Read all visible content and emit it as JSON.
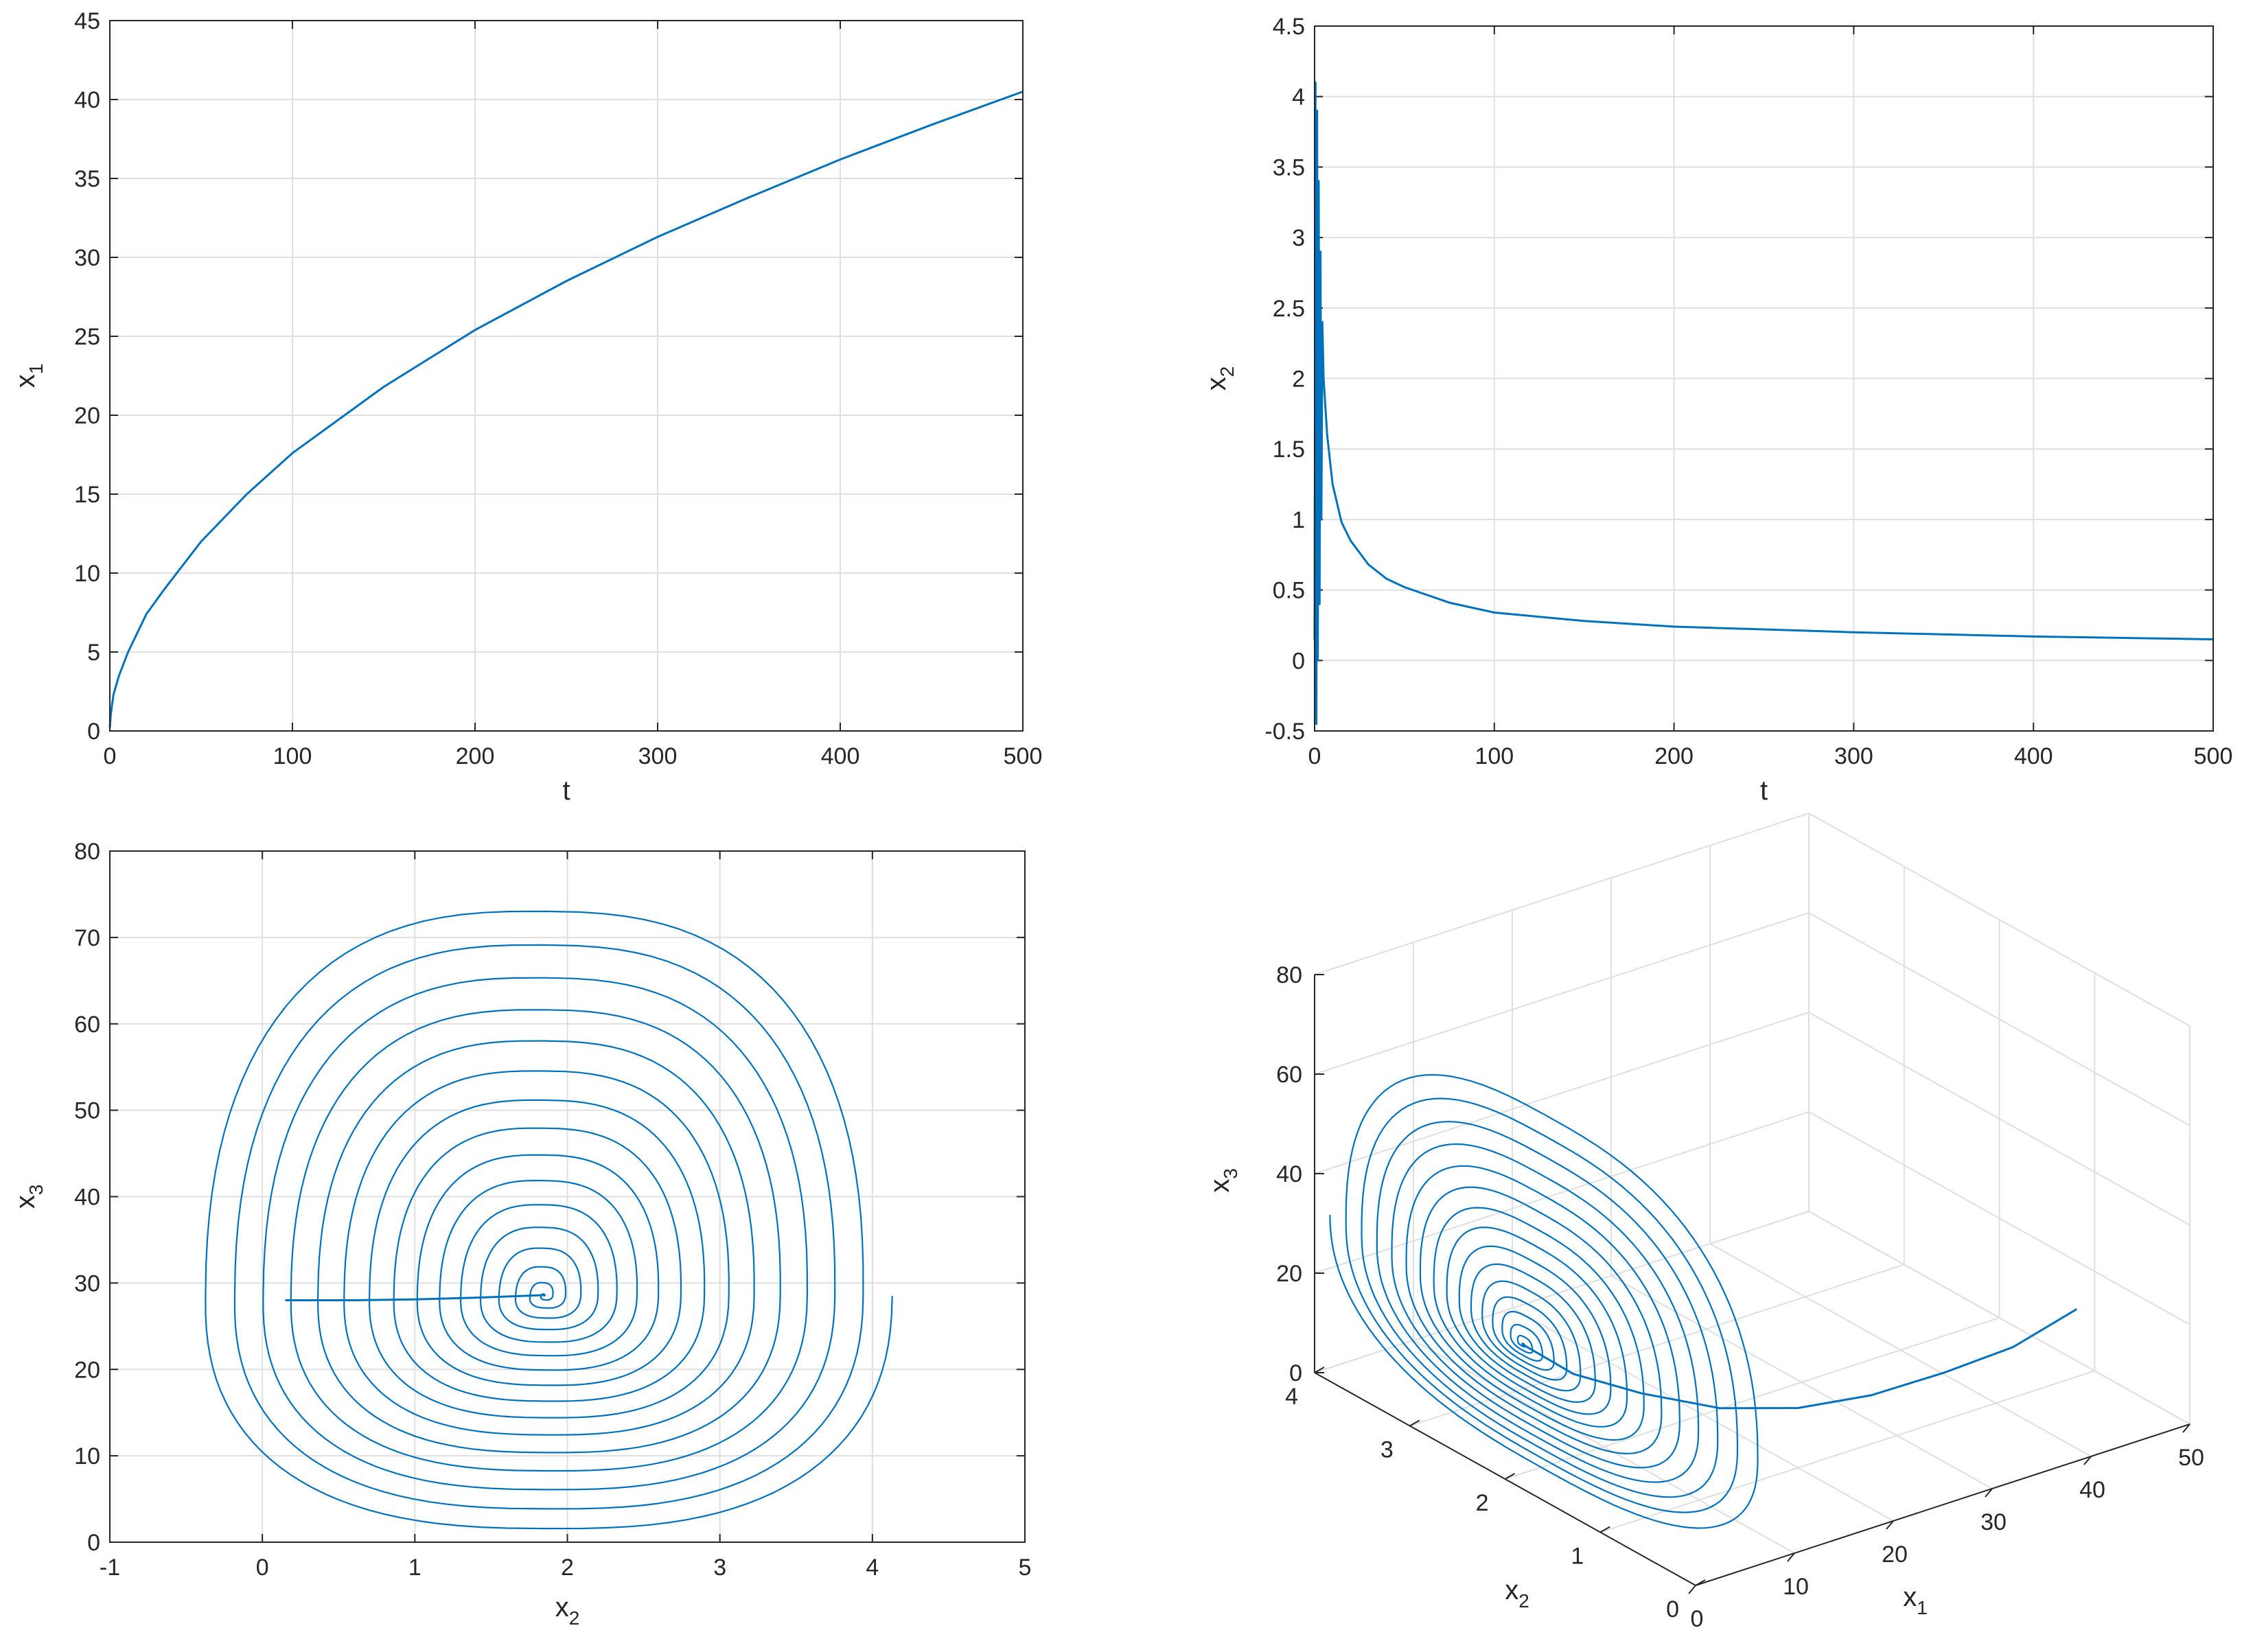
{
  "colors": {
    "line": "#0072BD",
    "grid": "#DFDFDF",
    "axis": "#262626",
    "background": "#FFFFFF"
  },
  "chart_data": [
    {
      "id": "x1_vs_t",
      "type": "line",
      "xlabel": "t",
      "ylabel": {
        "base": "x",
        "sub": "1"
      },
      "xlim": [
        0,
        500
      ],
      "ylim": [
        0,
        45
      ],
      "xticks": [
        0,
        100,
        200,
        300,
        400,
        500
      ],
      "yticks": [
        0,
        5,
        10,
        15,
        20,
        25,
        30,
        35,
        40,
        45
      ],
      "grid": true,
      "series": [
        {
          "x": [
            0,
            0.5,
            1,
            2,
            5,
            10,
            20,
            30,
            50,
            75,
            100,
            150,
            200,
            250,
            300,
            350,
            400,
            450,
            500
          ],
          "y": [
            0.2,
            1.0,
            1.5,
            2.3,
            3.5,
            5.0,
            7.4,
            9.0,
            12.0,
            15.0,
            17.6,
            21.8,
            25.4,
            28.5,
            31.3,
            33.8,
            36.2,
            38.4,
            40.5
          ]
        }
      ]
    },
    {
      "id": "x2_vs_t",
      "type": "line",
      "xlabel": "t",
      "ylabel": {
        "base": "x",
        "sub": "2"
      },
      "xlim": [
        0,
        500
      ],
      "ylim": [
        -0.5,
        4.5
      ],
      "xticks": [
        0,
        100,
        200,
        300,
        400,
        500
      ],
      "yticks": [
        -0.5,
        0,
        0.5,
        1,
        1.5,
        2,
        2.5,
        3,
        3.5,
        4,
        4.5
      ],
      "grid": true,
      "series": [
        {
          "x": [
            0,
            0.5,
            1.0,
            1.4,
            1.8,
            2.3,
            2.8,
            3.3,
            3.8,
            4.3,
            5,
            7,
            10,
            15,
            20,
            30,
            40,
            50,
            75,
            100,
            150,
            200,
            300,
            400,
            500
          ],
          "y": [
            0.15,
            4.1,
            -0.45,
            3.9,
            0.0,
            3.4,
            0.4,
            2.9,
            1.0,
            2.4,
            2.0,
            1.6,
            1.25,
            0.98,
            0.85,
            0.68,
            0.58,
            0.52,
            0.41,
            0.34,
            0.28,
            0.24,
            0.2,
            0.17,
            0.15
          ]
        }
      ]
    },
    {
      "id": "x3_vs_x2",
      "type": "line",
      "xlabel": {
        "base": "x",
        "sub": "2"
      },
      "ylabel": {
        "base": "x",
        "sub": "3"
      },
      "xlim": [
        -1,
        5
      ],
      "ylim": [
        0,
        80
      ],
      "xticks": [
        -1,
        0,
        1,
        2,
        3,
        4,
        5
      ],
      "yticks": [
        0,
        10,
        20,
        30,
        40,
        50,
        60,
        70,
        80
      ],
      "grid": true,
      "spiral": {
        "center": [
          1.85,
          28.5
        ],
        "outer_rx_left": 2.32,
        "outer_rx_right": 2.28,
        "outer_ry_up": 47.5,
        "outer_ry_down": 27.5,
        "turns": 16
      },
      "series": [
        {
          "x": [
            0.15,
            0.6,
            1.0,
            1.4,
            1.85
          ],
          "y": [
            28.0,
            28.0,
            28.1,
            28.3,
            28.6
          ]
        }
      ]
    },
    {
      "id": "phase_3d",
      "type": "line",
      "xlabel": {
        "base": "x",
        "sub": "1"
      },
      "ylabel": {
        "base": "x",
        "sub": "2"
      },
      "zlabel": {
        "base": "x",
        "sub": "3"
      },
      "xlim": [
        0,
        50
      ],
      "ylim": [
        0,
        4
      ],
      "zlim": [
        0,
        80
      ],
      "xticks": [
        0,
        10,
        20,
        30,
        40,
        50
      ],
      "yticks": [
        0,
        1,
        2,
        3,
        4
      ],
      "zticks": [
        0,
        20,
        40,
        60,
        80
      ],
      "grid": true,
      "series": [
        {
          "x": [
            0.3,
            5,
            10,
            15,
            20,
            25,
            30,
            35,
            40
          ],
          "y": [
            1.85,
            1.8,
            1.6,
            1.3,
            1.0,
            0.75,
            0.5,
            0.3,
            0.15
          ],
          "z": [
            28.5,
            20,
            15,
            12,
            12,
            14,
            18,
            22,
            28
          ]
        }
      ]
    }
  ]
}
